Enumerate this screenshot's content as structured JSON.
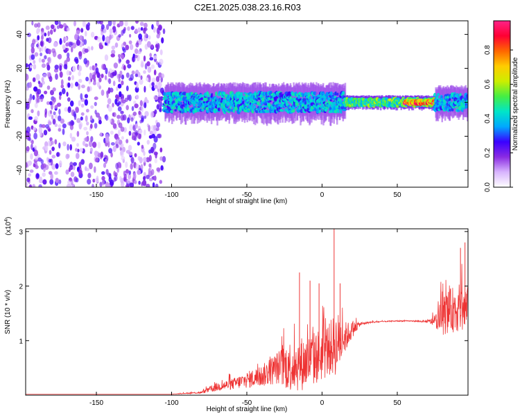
{
  "figure": {
    "title": "C2E1.2025.038.23.16.R03"
  },
  "chart_data": [
    {
      "type": "heatmap",
      "xlabel": "Height of straight line (km)",
      "ylabel": "Frequency (Hz)",
      "xlim": [
        -197,
        97
      ],
      "ylim": [
        -50,
        48
      ],
      "x_ticks": [
        -150,
        -100,
        -50,
        0,
        50
      ],
      "y_ticks": [
        -40,
        -20,
        0,
        20,
        40
      ],
      "grid": false,
      "colorbar": {
        "label": "Normalized spectral amplitude",
        "range": [
          0,
          0.97
        ],
        "ticks": [
          0.0,
          0.2,
          0.4,
          0.6,
          0.8
        ],
        "colors": [
          "#ffffff",
          "#d8b4fe",
          "#8a2be2",
          "#3a00ff",
          "#00a8ff",
          "#00e5c8",
          "#44ee44",
          "#ccee00",
          "#ffcc00",
          "#ff6600",
          "#ff0033",
          "#ff2288"
        ]
      },
      "regions": [
        {
          "x": [
            -197,
            -105
          ],
          "description": "noise speckle, full frequency range",
          "amplitude": 0.25
        },
        {
          "x": [
            -105,
            15
          ],
          "frequency_center": 0,
          "frequency_halfwidth": 7,
          "amplitude": 0.45
        },
        {
          "x": [
            15,
            75
          ],
          "frequency_center": 0,
          "frequency_halfwidth": 2.5,
          "amplitude": 0.6
        },
        {
          "x": [
            55,
            75
          ],
          "frequency_center": 0,
          "frequency_halfwidth": 1,
          "amplitude": 0.95
        },
        {
          "x": [
            75,
            97
          ],
          "frequency_center": 0,
          "frequency_halfwidth": 6,
          "amplitude": 0.45
        }
      ]
    },
    {
      "type": "line",
      "xlabel": "Height of straight line (km)",
      "ylabel": "SNR (10 * v/v)",
      "y_multiplier": "(x10",
      "y_multiplier_exp": "4",
      "y_multiplier_close": ")",
      "xlim": [
        -197,
        97
      ],
      "ylim": [
        0,
        3.05
      ],
      "x_ticks": [
        -150,
        -100,
        -50,
        0,
        50
      ],
      "y_ticks": [
        1,
        2,
        3
      ],
      "grid": false,
      "series": [
        {
          "color": "#ee3333",
          "x": [
            -197,
            -150,
            -100,
            -80,
            -70,
            -60,
            -50,
            -40,
            -30,
            -20,
            -10,
            0,
            5,
            10,
            15,
            20,
            25,
            30,
            40,
            50,
            60,
            70,
            75,
            80,
            85,
            90,
            97
          ],
          "y": [
            0.02,
            0.02,
            0.02,
            0.05,
            0.15,
            0.2,
            0.28,
            0.35,
            0.5,
            0.55,
            0.6,
            0.75,
            0.85,
            0.95,
            1.05,
            1.2,
            1.3,
            1.33,
            1.35,
            1.36,
            1.36,
            1.35,
            1.35,
            1.45,
            1.55,
            1.6,
            1.55
          ],
          "noise": [
            0,
            0,
            0,
            0.02,
            0.08,
            0.1,
            0.15,
            0.2,
            0.3,
            0.5,
            0.5,
            0.5,
            0.5,
            0.6,
            0.3,
            0.15,
            0.04,
            0.02,
            0.01,
            0.01,
            0.01,
            0.02,
            0.1,
            0.35,
            0.4,
            0.45,
            0.45
          ],
          "peaks": [
            {
              "x": 8,
              "y": 3.05
            },
            {
              "x": -15,
              "y": 2.25
            },
            {
              "x": -8,
              "y": 2.1
            },
            {
              "x": -2,
              "y": 2.05
            },
            {
              "x": 12,
              "y": 2.05
            },
            {
              "x": 92,
              "y": 2.7
            },
            {
              "x": 95,
              "y": 2.8
            }
          ]
        }
      ]
    }
  ]
}
